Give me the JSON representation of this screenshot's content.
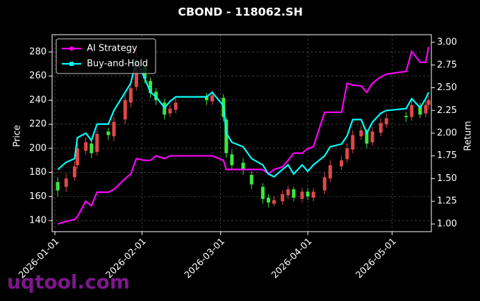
{
  "chart_data": {
    "type": "candlestick",
    "title": "CBOND - 118062.SH",
    "ylabel": "Price",
    "y2label": "Return",
    "x": [
      "2026-01-02",
      "2026-01-05",
      "2026-01-08",
      "2026-01-09",
      "2026-01-12",
      "2026-01-14",
      "2026-01-16",
      "2026-01-20",
      "2026-01-22",
      "2026-01-26",
      "2026-01-28",
      "2026-01-30",
      "2026-02-02",
      "2026-02-04",
      "2026-02-06",
      "2026-02-09",
      "2026-02-11",
      "2026-02-13",
      "2026-02-24",
      "2026-02-26",
      "2026-03-02",
      "2026-03-03",
      "2026-03-05",
      "2026-03-09",
      "2026-03-12",
      "2026-03-16",
      "2026-03-18",
      "2026-03-20",
      "2026-03-23",
      "2026-03-25",
      "2026-03-27",
      "2026-03-30",
      "2026-04-01",
      "2026-04-03",
      "2026-04-07",
      "2026-04-09",
      "2026-04-13",
      "2026-04-15",
      "2026-04-17",
      "2026-04-20",
      "2026-04-22",
      "2026-04-24",
      "2026-04-27",
      "2026-04-29",
      "2026-05-06",
      "2026-05-08",
      "2026-05-11",
      "2026-05-13",
      "2026-05-14"
    ],
    "open": [
      172,
      168,
      176,
      186,
      198,
      204,
      197,
      214,
      210,
      224,
      238,
      251,
      268,
      256,
      247,
      238,
      229,
      232,
      243,
      239,
      242,
      224,
      195,
      188,
      178,
      168,
      159,
      154,
      156,
      161,
      166,
      158,
      164,
      159,
      165,
      175,
      185,
      191,
      199,
      210,
      214,
      205,
      213,
      220,
      227,
      226,
      235,
      229,
      236
    ],
    "high": [
      176,
      179,
      189,
      204,
      209,
      207,
      216,
      217,
      226,
      245,
      256,
      282,
      270,
      259,
      250,
      241,
      236,
      242,
      246,
      248,
      245,
      226,
      199,
      192,
      181,
      171,
      162,
      160,
      165,
      169,
      168,
      167,
      167,
      167,
      180,
      190,
      194,
      204,
      215,
      219,
      216,
      218,
      225,
      229,
      230,
      240,
      238,
      240,
      244
    ],
    "low": [
      160,
      164,
      173,
      183,
      195,
      192,
      194,
      207,
      206,
      220,
      234,
      248,
      254,
      242,
      236,
      224,
      226,
      229,
      236,
      236,
      222,
      192,
      182,
      178,
      166,
      154,
      151,
      152,
      153,
      158,
      156,
      155,
      157,
      156,
      162,
      172,
      182,
      188,
      196,
      207,
      200,
      202,
      210,
      217,
      222,
      223,
      225,
      226,
      232
    ],
    "close": [
      165,
      175,
      185,
      200,
      205,
      196,
      212,
      211,
      222,
      240,
      250,
      272,
      258,
      246,
      240,
      228,
      233,
      238,
      240,
      244,
      226,
      196,
      186,
      182,
      170,
      158,
      155,
      157,
      162,
      166,
      159,
      164,
      160,
      164,
      176,
      186,
      190,
      200,
      211,
      215,
      204,
      214,
      221,
      225,
      226,
      236,
      228,
      236,
      240
    ],
    "up_color": "#e04848",
    "down_color": "#3ce83c",
    "series": [
      {
        "name": "AI Strategy",
        "color": "#ff00ff",
        "marker": "circle",
        "axis": "y2",
        "values": [
          1.0,
          1.03,
          1.05,
          1.08,
          1.25,
          1.2,
          1.35,
          1.35,
          1.38,
          1.5,
          1.55,
          1.72,
          1.7,
          1.7,
          1.75,
          1.72,
          1.75,
          1.75,
          1.75,
          1.75,
          1.7,
          1.6,
          1.6,
          1.6,
          1.6,
          1.6,
          1.55,
          1.6,
          1.63,
          1.7,
          1.78,
          1.78,
          1.83,
          1.85,
          2.23,
          2.23,
          2.23,
          2.55,
          2.53,
          2.52,
          2.45,
          2.55,
          2.62,
          2.65,
          2.68,
          2.9,
          2.78,
          2.78,
          2.95
        ]
      },
      {
        "name": "Buy-and-Hold",
        "color": "#00ffff",
        "marker": "square",
        "axis": "y2",
        "values": [
          1.6,
          1.68,
          1.72,
          1.95,
          2.0,
          1.92,
          2.1,
          2.1,
          2.25,
          2.45,
          2.55,
          2.8,
          2.6,
          2.45,
          2.4,
          2.28,
          2.35,
          2.4,
          2.4,
          2.45,
          2.3,
          2.0,
          1.9,
          1.85,
          1.72,
          1.65,
          1.55,
          1.52,
          1.6,
          1.65,
          1.55,
          1.65,
          1.58,
          1.65,
          1.75,
          1.85,
          1.88,
          1.97,
          2.15,
          2.15,
          2.0,
          2.12,
          2.22,
          2.25,
          2.27,
          2.38,
          2.28,
          2.38,
          2.45
        ]
      }
    ],
    "xlim": [
      "2025-12-31",
      "2026-05-15"
    ],
    "xticks": [
      "2026-01-01",
      "2026-02-01",
      "2026-03-01",
      "2026-04-01",
      "2026-05-01"
    ],
    "ylim": [
      130.8,
      294.4
    ],
    "yticks": [
      140,
      160,
      180,
      200,
      220,
      240,
      260,
      280
    ],
    "y2lim": [
      0.916,
      3.084
    ],
    "y2ticks": [
      {
        "value": 1,
        "label": "1.00"
      },
      1.25,
      {
        "value": 1.5,
        "label": "1.50"
      },
      1.75,
      {
        "value": 2,
        "label": "2.00"
      },
      2.25,
      {
        "value": 2.5,
        "label": "2.50"
      },
      2.75,
      {
        "value": 3,
        "label": "3.00"
      }
    ],
    "grid": true,
    "legend": "upper left"
  },
  "watermark": "uqtool.com"
}
